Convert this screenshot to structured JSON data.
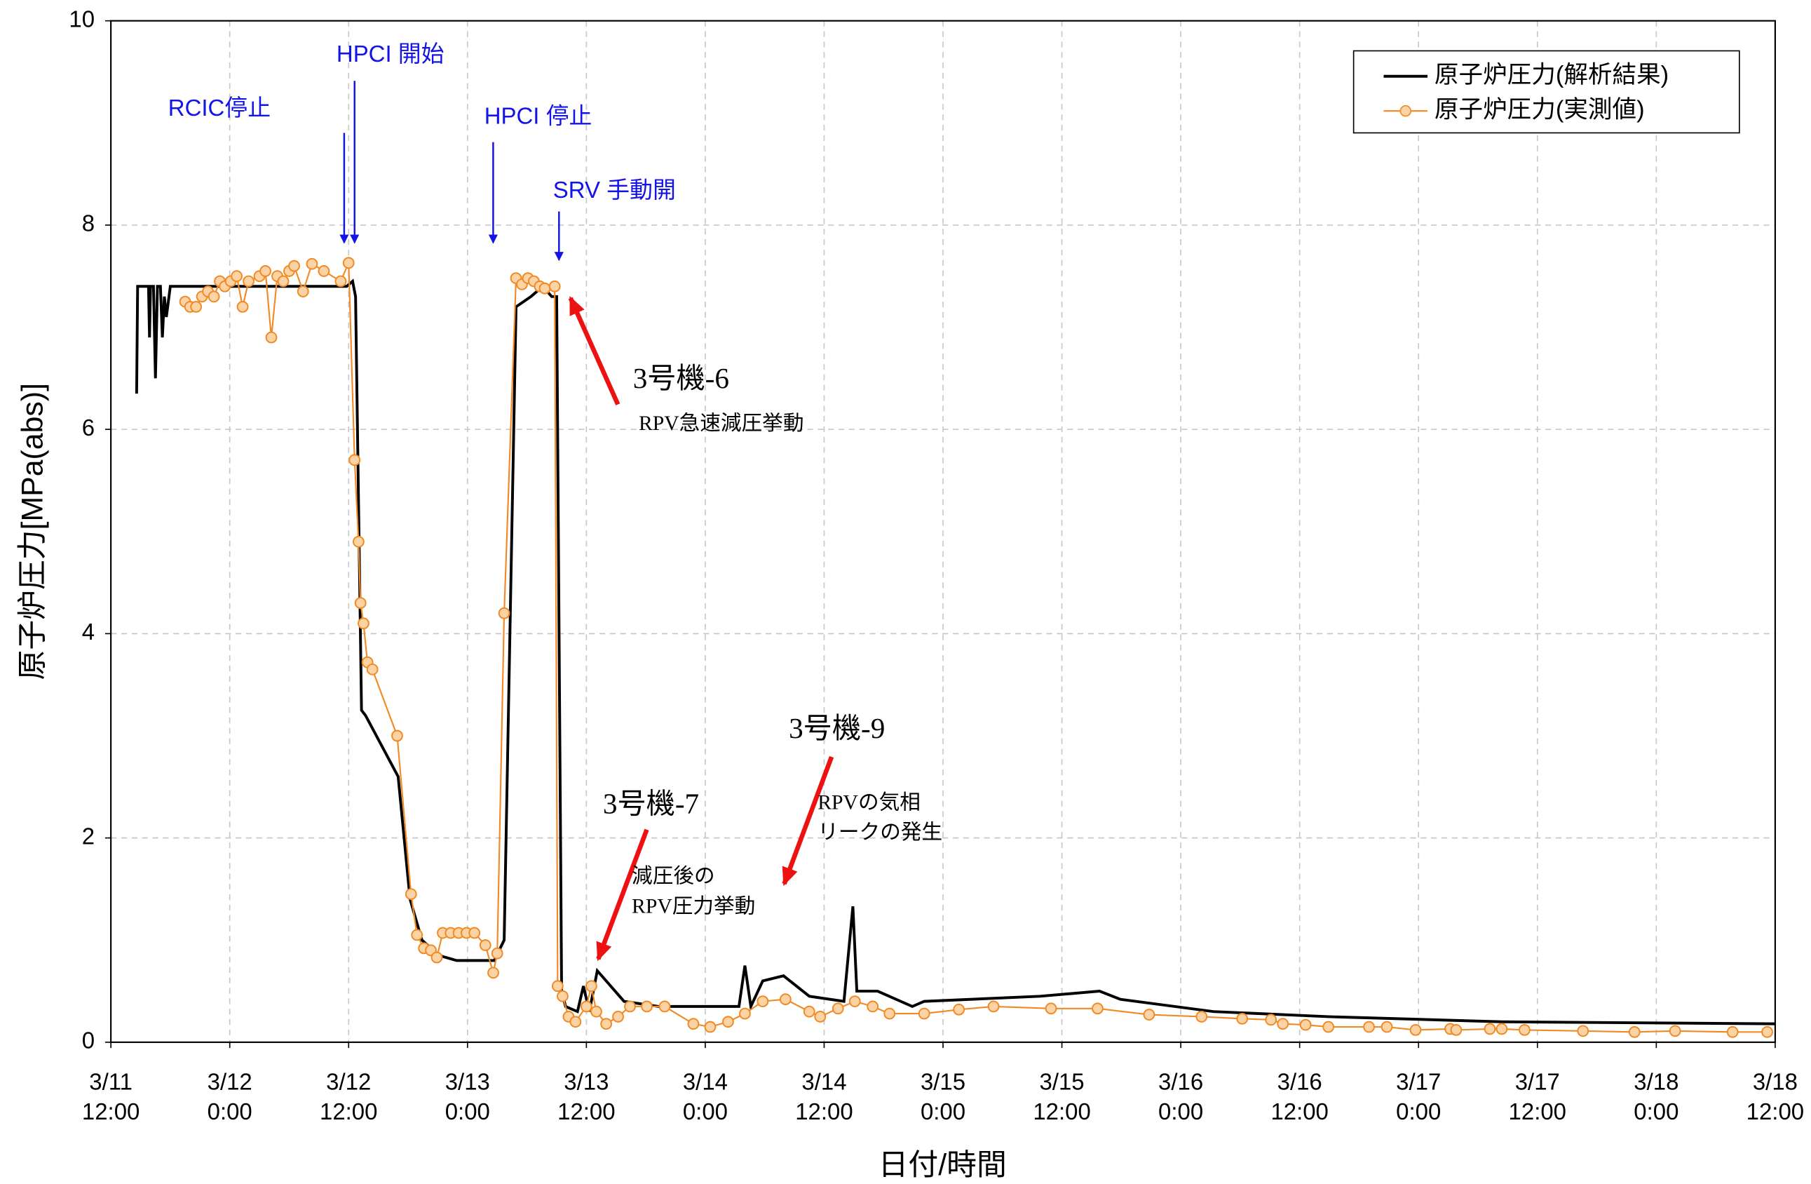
{
  "chart_data": {
    "type": "line",
    "ylabel": "原子炉圧力[MPa(abs)]",
    "xlabel": "日付/時間",
    "xlim": [
      0,
      168
    ],
    "xticks": [
      {
        "value": 0,
        "label": "3/11 12:00"
      },
      {
        "value": 12,
        "label": "3/12 0:00"
      },
      {
        "value": 24,
        "label": "3/12 12:00"
      },
      {
        "value": 36,
        "label": "3/13 0:00"
      },
      {
        "value": 48,
        "label": "3/13 12:00"
      },
      {
        "value": 60,
        "label": "3/14 0:00"
      },
      {
        "value": 72,
        "label": "3/14 12:00"
      },
      {
        "value": 84,
        "label": "3/15 0:00"
      },
      {
        "value": 96,
        "label": "3/15 12:00"
      },
      {
        "value": 108,
        "label": "3/16 0:00"
      },
      {
        "value": 120,
        "label": "3/16 12:00"
      },
      {
        "value": 132,
        "label": "3/17 0:00"
      },
      {
        "value": 144,
        "label": "3/17 12:00"
      },
      {
        "value": 156,
        "label": "3/18 0:00"
      },
      {
        "value": 168,
        "label": "3/18 12:00"
      }
    ],
    "ylim": [
      0,
      10
    ],
    "yticks": [
      0,
      2,
      4,
      6,
      8,
      10
    ],
    "grid": true,
    "legend": "upper right",
    "annotations": [
      "RCIC停止",
      "HPCI 開始",
      "HPCI 停止",
      "SRV 手動開",
      "3号機-6",
      "RPV急速減圧挙動",
      "3号機-7",
      "減圧後の",
      "RPV圧力挙動",
      "3号機-9",
      "RPVの気相",
      "リークの発生"
    ],
    "series": [
      {
        "name": "原子炉圧力(解析結果)",
        "color": "#000000",
        "marker": false,
        "x": [
          2.6,
          2.7,
          3.8,
          3.9,
          4.0,
          4.3,
          4.5,
          4.7,
          5.0,
          5.2,
          5.4,
          5.6,
          6.0,
          23.8,
          24.4,
          24.7,
          25.3,
          25.7,
          29.0,
          30.2,
          31.4,
          33.1,
          34.9,
          38.7,
          39.7,
          40.9,
          42.4,
          43.6,
          44.5,
          45.0,
          45.5,
          45.9,
          47.1,
          47.7,
          48.3,
          49.1,
          51.8,
          55.3,
          63.4,
          64.0,
          64.6,
          65.8,
          67.9,
          70.5,
          74.0,
          74.9,
          75.3,
          77.4,
          80.9,
          82.1,
          93.8,
          99.8,
          101.9,
          111.3,
          122.9,
          140.4,
          168
        ],
        "values": [
          6.35,
          7.4,
          7.4,
          6.9,
          7.4,
          7.4,
          6.5,
          7.4,
          7.4,
          6.9,
          7.3,
          7.1,
          7.4,
          7.4,
          7.45,
          7.3,
          3.25,
          3.2,
          2.6,
          1.4,
          1.0,
          0.85,
          0.8,
          0.8,
          1.0,
          7.2,
          7.3,
          7.4,
          7.3,
          7.3,
          0.5,
          0.35,
          0.3,
          0.55,
          0.3,
          0.7,
          0.4,
          0.35,
          0.35,
          0.75,
          0.35,
          0.6,
          0.65,
          0.45,
          0.4,
          1.33,
          0.5,
          0.5,
          0.35,
          0.4,
          0.45,
          0.5,
          0.42,
          0.3,
          0.25,
          0.2,
          0.18
        ]
      },
      {
        "name": "原子炉圧力(実測値)",
        "color": "#f08a24",
        "marker": true,
        "x": [
          7.5,
          8.0,
          8.6,
          9.2,
          9.8,
          10.4,
          11.0,
          11.5,
          12.1,
          12.7,
          13.3,
          13.9,
          15.0,
          15.6,
          16.2,
          16.8,
          17.4,
          18.0,
          18.5,
          19.4,
          20.3,
          21.5,
          23.2,
          24.0,
          24.6,
          25.0,
          25.2,
          25.5,
          25.9,
          26.4,
          28.9,
          30.3,
          30.9,
          31.6,
          32.3,
          32.9,
          33.5,
          34.3,
          35.1,
          35.9,
          36.7,
          37.8,
          38.6,
          39.0,
          39.7,
          40.9,
          41.5,
          42.1,
          42.7,
          43.3,
          43.8,
          44.8,
          45.1,
          45.6,
          46.2,
          46.9,
          48.0,
          48.5,
          49.0,
          50.0,
          51.2,
          52.4,
          54.1,
          55.9,
          58.8,
          60.5,
          62.3,
          64.0,
          65.8,
          68.1,
          70.5,
          71.6,
          73.4,
          75.1,
          76.9,
          78.6,
          82.1,
          85.6,
          89.1,
          94.9,
          99.6,
          104.8,
          110.1,
          114.2,
          117.1,
          118.3,
          120.6,
          122.9,
          127.0,
          128.8,
          131.7,
          135.2,
          135.8,
          139.2,
          140.4,
          142.7,
          148.6,
          153.8,
          157.9,
          163.7,
          167.2
        ],
        "values": [
          7.25,
          7.2,
          7.2,
          7.3,
          7.35,
          7.3,
          7.45,
          7.4,
          7.45,
          7.5,
          7.2,
          7.45,
          7.5,
          7.55,
          6.9,
          7.5,
          7.45,
          7.55,
          7.6,
          7.35,
          7.62,
          7.55,
          7.45,
          7.63,
          5.7,
          4.9,
          4.3,
          4.1,
          3.72,
          3.65,
          3.0,
          1.45,
          1.05,
          0.92,
          0.9,
          0.83,
          1.07,
          1.07,
          1.07,
          1.07,
          1.07,
          0.95,
          0.68,
          0.87,
          4.2,
          7.48,
          7.42,
          7.48,
          7.45,
          7.4,
          7.38,
          7.4,
          0.55,
          0.45,
          0.25,
          0.2,
          0.35,
          0.55,
          0.3,
          0.18,
          0.25,
          0.35,
          0.35,
          0.35,
          0.18,
          0.15,
          0.2,
          0.28,
          0.4,
          0.42,
          0.3,
          0.25,
          0.33,
          0.4,
          0.35,
          0.28,
          0.28,
          0.32,
          0.35,
          0.33,
          0.33,
          0.27,
          0.25,
          0.23,
          0.22,
          0.18,
          0.17,
          0.15,
          0.15,
          0.15,
          0.12,
          0.13,
          0.12,
          0.13,
          0.13,
          0.12,
          0.11,
          0.1,
          0.11,
          0.1,
          0.1
        ]
      }
    ]
  }
}
